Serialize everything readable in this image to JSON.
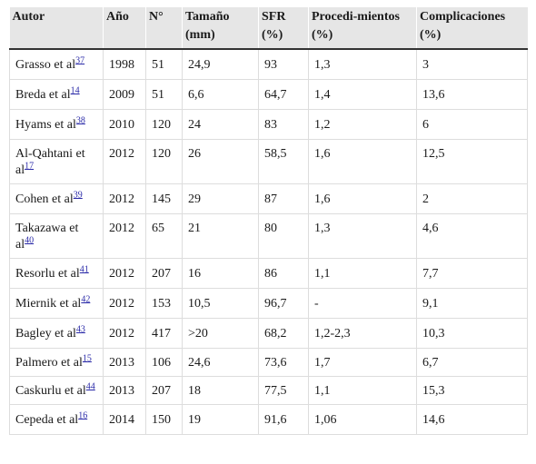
{
  "table": {
    "headers": [
      {
        "line1": "Autor",
        "line2": ""
      },
      {
        "line1": "Año",
        "line2": ""
      },
      {
        "line1": "N°",
        "line2": ""
      },
      {
        "line1": "Tamaño",
        "line2": "(mm)"
      },
      {
        "line1": "SFR",
        "line2": "(%)"
      },
      {
        "line1": "Procedi-mientos",
        "line2": "(%)"
      },
      {
        "line1": "Complicaciones",
        "line2": "(%)"
      }
    ],
    "rows": [
      {
        "author": "Grasso et al",
        "ref": "37",
        "year": "1998",
        "n": "51",
        "size": "24,9",
        "sfr": "93",
        "proc": "1,3",
        "comp": "3"
      },
      {
        "author": "Breda et al",
        "ref": "14",
        "year": "2009",
        "n": "51",
        "size": "6,6",
        "sfr": "64,7",
        "proc": "1,4",
        "comp": "13,6"
      },
      {
        "author": "Hyams et al",
        "ref": "38",
        "year": "2010",
        "n": "120",
        "size": "24",
        "sfr": "83",
        "proc": "1,2",
        "comp": "6"
      },
      {
        "author": "Al-Qahtani et al",
        "ref": "17",
        "year": "2012",
        "n": "120",
        "size": "26",
        "sfr": "58,5",
        "proc": "1,6",
        "comp": "12,5"
      },
      {
        "author": "Cohen et al",
        "ref": "39",
        "year": "2012",
        "n": "145",
        "size": "29",
        "sfr": "87",
        "proc": "1,6",
        "comp": "2"
      },
      {
        "author": "Takazawa et al",
        "ref": "40",
        "year": "2012",
        "n": "65",
        "size": "21",
        "sfr": "80",
        "proc": "1,3",
        "comp": "4,6"
      },
      {
        "author": "Resorlu et al",
        "ref": "41",
        "year": "2012",
        "n": "207",
        "size": "16",
        "sfr": "86",
        "proc": "1,1",
        "comp": "7,7"
      },
      {
        "author": "Miernik et al",
        "ref": "42",
        "year": "2012",
        "n": "153",
        "size": "10,5",
        "sfr": "96,7",
        "proc": "-",
        "comp": "9,1"
      },
      {
        "author": "Bagley et al",
        "ref": "43",
        "year": "2012",
        "n": "417",
        "size": ">20",
        "sfr": "68,2",
        "proc": "1,2-2,3",
        "comp": "10,3"
      },
      {
        "author": "Palmero et al",
        "ref": "15",
        "year": "2013",
        "n": "106",
        "size": "24,6",
        "sfr": "73,6",
        "proc": "1,7",
        "comp": "6,7"
      },
      {
        "author": "Caskurlu et al",
        "ref": "44",
        "year": "2013",
        "n": "207",
        "size": "18",
        "sfr": "77,5",
        "proc": "1,1",
        "comp": "15,3"
      },
      {
        "author": "Cepeda et al",
        "ref": "16",
        "year": "2014",
        "n": "150",
        "size": "19",
        "sfr": "91,6",
        "proc": "1,06",
        "comp": "14,6"
      }
    ]
  }
}
